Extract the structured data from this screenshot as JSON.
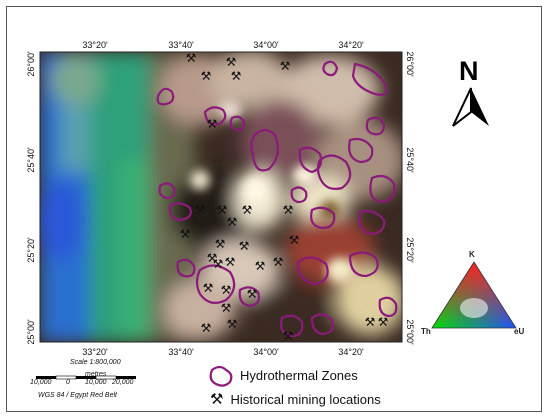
{
  "map": {
    "lon_ticks": [
      "33°20'",
      "33°40'",
      "34°00'",
      "34°20'"
    ],
    "lat_ticks": [
      "26°00'",
      "25°40'",
      "25°20'",
      "25°00'"
    ],
    "lat_ticks_right": [
      "26°00'",
      "25°40'",
      "25°20'",
      "25°00'"
    ]
  },
  "north_arrow": {
    "label": "N"
  },
  "ternary": {
    "top": "K",
    "left": "Th",
    "right": "eU"
  },
  "scale_bar": {
    "title": "Scale 1:800,000",
    "units": "metres",
    "labels": [
      "10,000",
      "0",
      "10,000",
      "20,000"
    ],
    "footer": "WGS 84 / Egypt Red Belt"
  },
  "legend": {
    "zones_label": "Hydrothermal Zones",
    "mining_label": "Historical mining locations"
  },
  "colors": {
    "zone_outline": "#8b1a7a",
    "mining_icon": "#111111"
  }
}
